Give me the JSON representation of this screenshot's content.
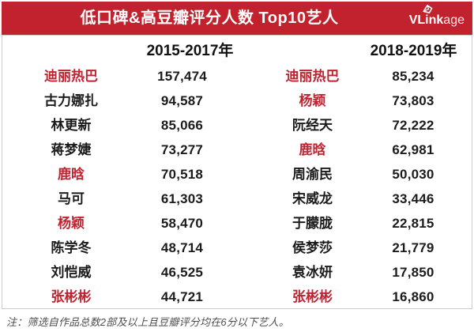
{
  "header": {
    "title": "低口碑&高豆瓣评分人数 Top10艺人",
    "brand_bold": "VLink",
    "brand_light": "age"
  },
  "colors": {
    "bar_red": "#c2222d",
    "highlight_red": "#bd2330",
    "text_black": "#1b1b1b",
    "border_gray": "#cbcbcb"
  },
  "chart_data": {
    "type": "table",
    "title": "低口碑&高豆瓣评分人数 Top10艺人",
    "note": "注：筛选自作品总数2部及以上且豆瓣评分均在6分以下艺人。",
    "highlight_meaning": "red-names-highlighted",
    "columns": [
      {
        "period": "2015-2017年",
        "rows": [
          {
            "name": "迪丽热巴",
            "value": "157,474",
            "highlight": true
          },
          {
            "name": "古力娜扎",
            "value": "94,587",
            "highlight": false
          },
          {
            "name": "林更新",
            "value": "85,066",
            "highlight": false
          },
          {
            "name": "蒋梦婕",
            "value": "73,277",
            "highlight": false
          },
          {
            "name": "鹿晗",
            "value": "70,518",
            "highlight": true
          },
          {
            "name": "马可",
            "value": "61,303",
            "highlight": false
          },
          {
            "name": "杨颖",
            "value": "58,470",
            "highlight": true
          },
          {
            "name": "陈学冬",
            "value": "48,714",
            "highlight": false
          },
          {
            "name": "刘恺威",
            "value": "46,525",
            "highlight": false
          },
          {
            "name": "张彬彬",
            "value": "44,721",
            "highlight": true
          }
        ]
      },
      {
        "period": "2018-2019年",
        "rows": [
          {
            "name": "迪丽热巴",
            "value": "85,234",
            "highlight": true
          },
          {
            "name": "杨颖",
            "value": "73,803",
            "highlight": true
          },
          {
            "name": "阮经天",
            "value": "72,222",
            "highlight": false
          },
          {
            "name": "鹿晗",
            "value": "62,981",
            "highlight": true
          },
          {
            "name": "周渝民",
            "value": "50,030",
            "highlight": false
          },
          {
            "name": "宋威龙",
            "value": "33,446",
            "highlight": false
          },
          {
            "name": "于朦胧",
            "value": "22,815",
            "highlight": false
          },
          {
            "name": "侯梦莎",
            "value": "21,779",
            "highlight": false
          },
          {
            "name": "袁冰妍",
            "value": "17,850",
            "highlight": false
          },
          {
            "name": "张彬彬",
            "value": "16,860",
            "highlight": true
          }
        ]
      }
    ]
  },
  "footnote": "注：筛选自作品总数2部及以上且豆瓣评分均在6分以下艺人。"
}
